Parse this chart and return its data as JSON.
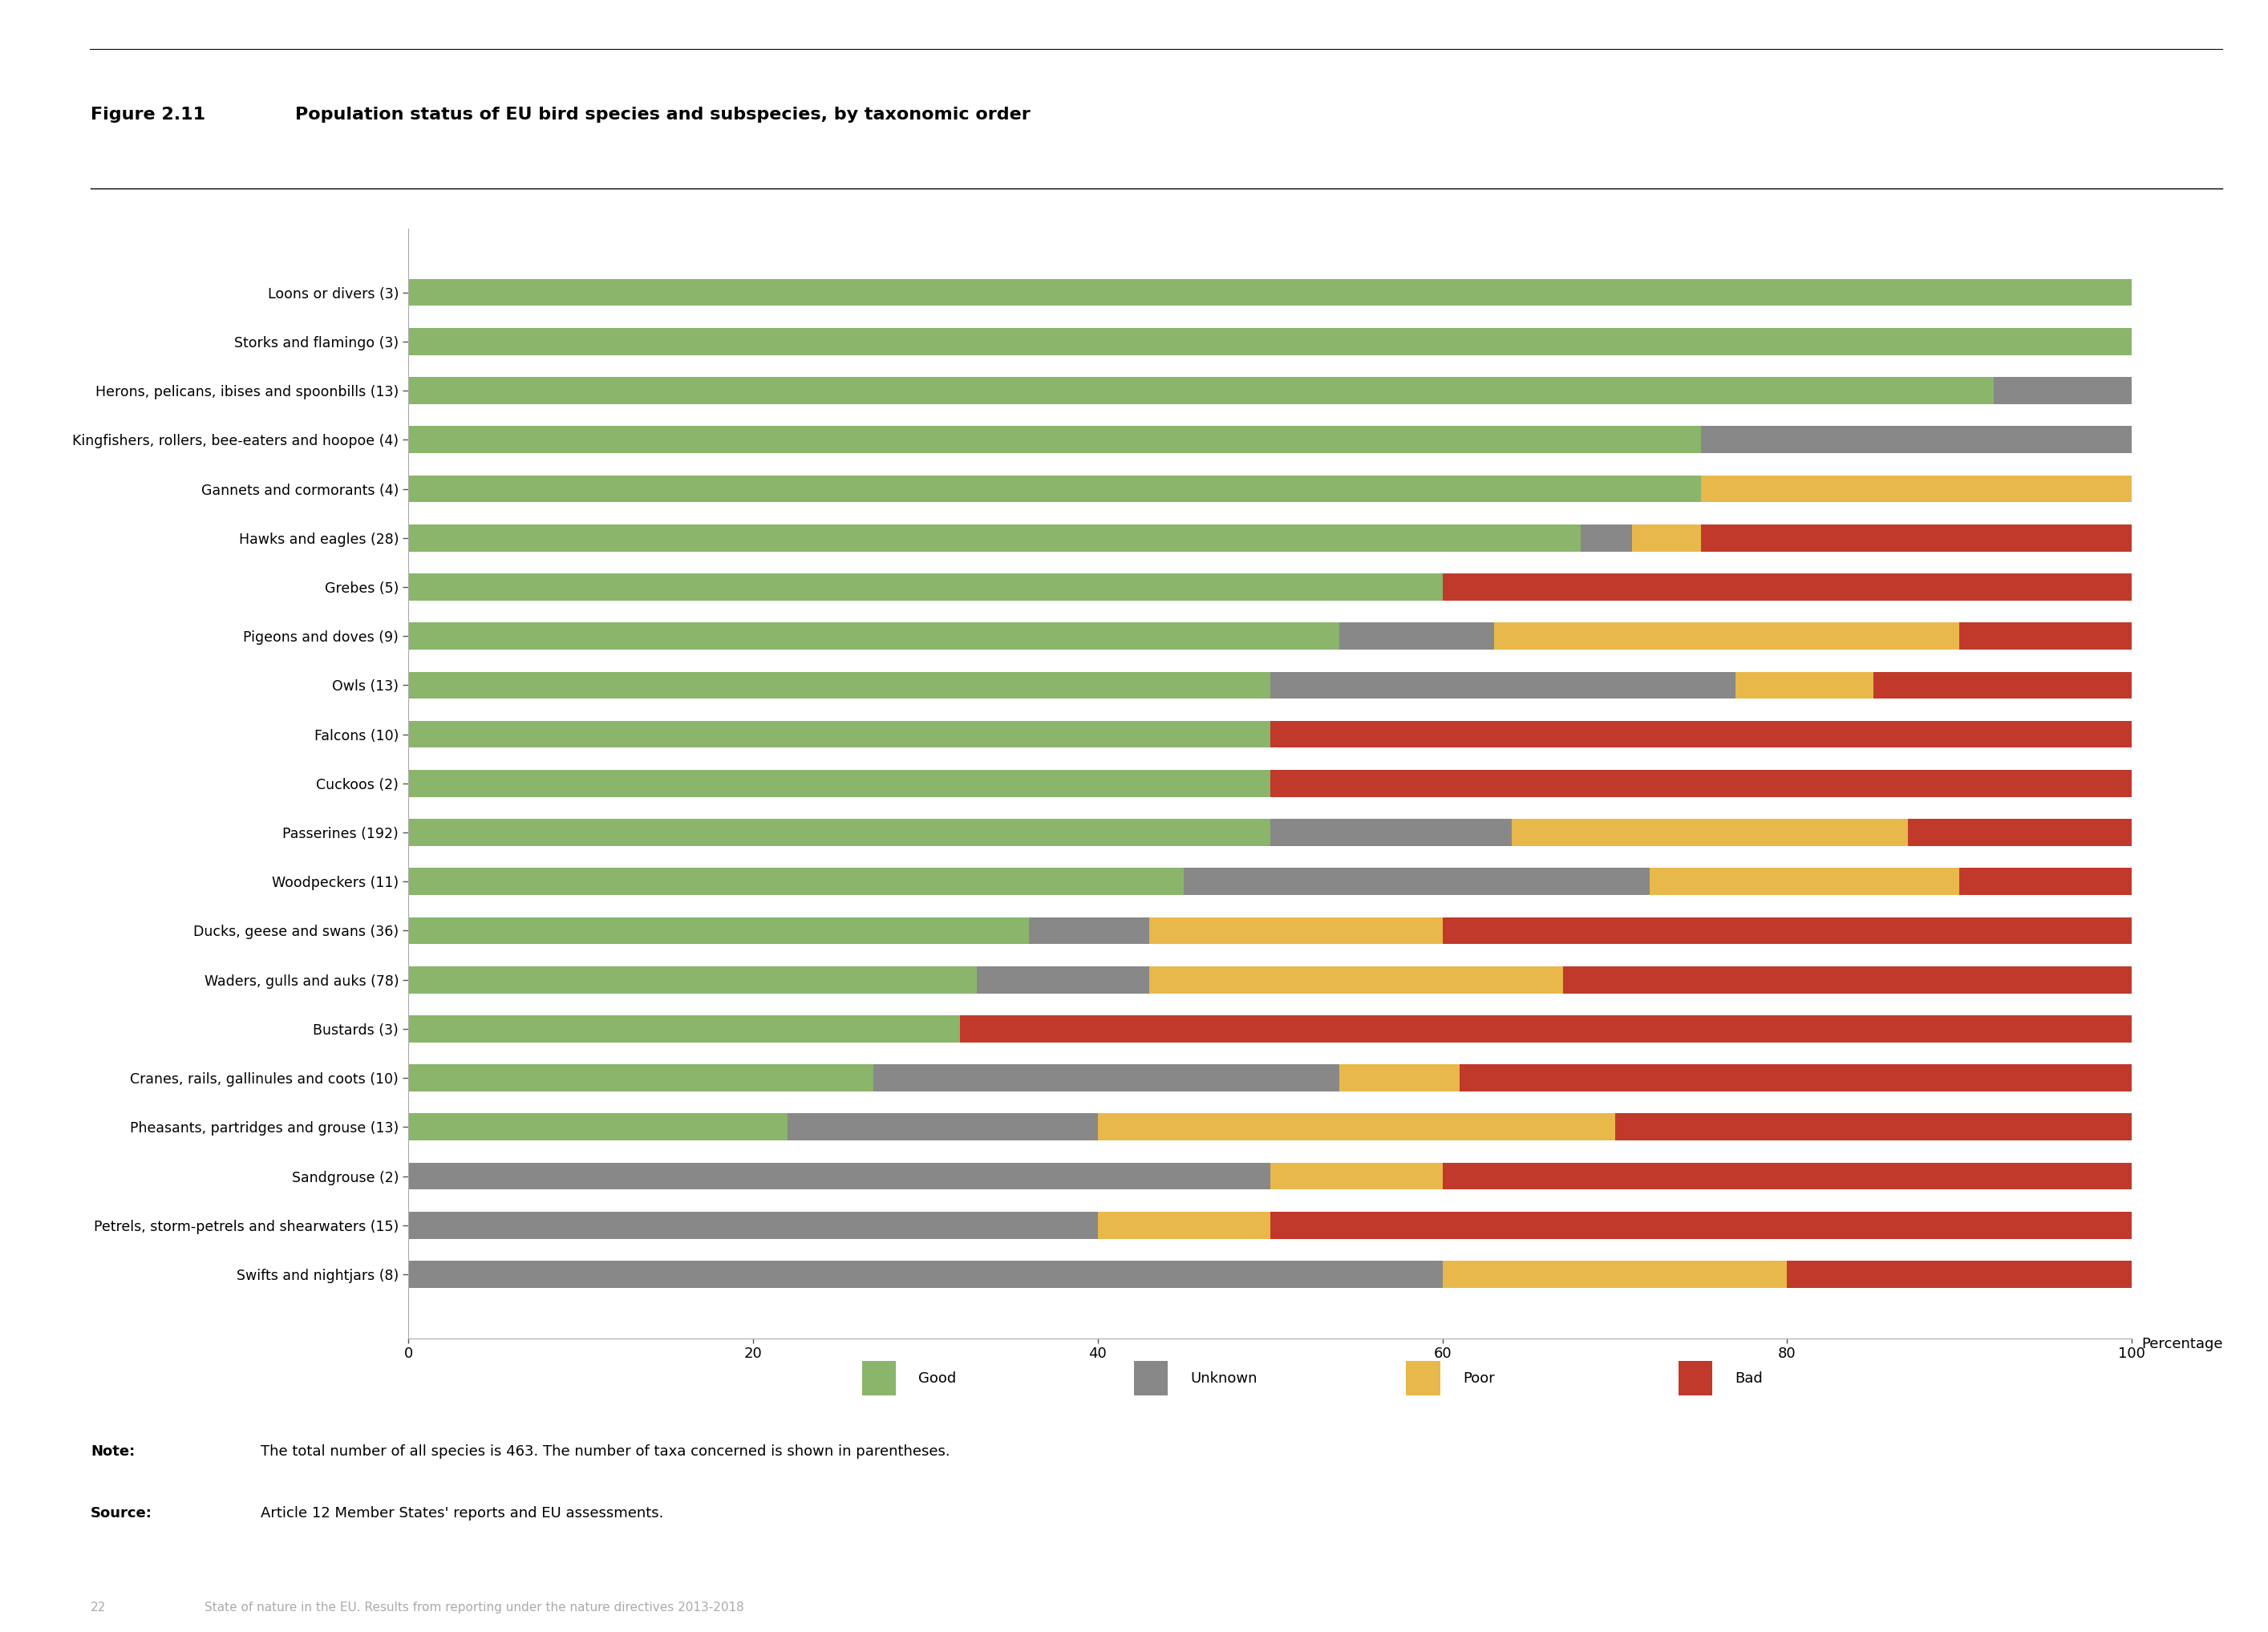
{
  "title_prefix": "Figure 2.11",
  "title": "Population status of EU bird species and subspecies, by taxonomic order",
  "categories": [
    "Loons or divers (3)",
    "Storks and flamingo (3)",
    "Herons, pelicans, ibises and spoonbills (13)",
    "Kingfishers, rollers, bee-eaters and hoopoe (4)",
    "Gannets and cormorants (4)",
    "Hawks and eagles (28)",
    "Grebes (5)",
    "Pigeons and doves (9)",
    "Owls (13)",
    "Falcons (10)",
    "Cuckoos (2)",
    "Passerines (192)",
    "Woodpeckers (11)",
    "Ducks, geese and swans (36)",
    "Waders, gulls and auks (78)",
    "Bustards (3)",
    "Cranes, rails, gallinules and coots (10)",
    "Pheasants, partridges and grouse (13)",
    "Sandgrouse (2)",
    "Petrels, storm-petrels and shearwaters (15)",
    "Swifts and nightjars (8)"
  ],
  "good": [
    100,
    100,
    92,
    75,
    75,
    68,
    60,
    54,
    50,
    50,
    50,
    50,
    45,
    36,
    33,
    32,
    27,
    22,
    0,
    0,
    0
  ],
  "unknown": [
    0,
    0,
    8,
    25,
    0,
    3,
    0,
    9,
    27,
    0,
    0,
    14,
    27,
    7,
    10,
    0,
    27,
    18,
    50,
    40,
    60
  ],
  "poor": [
    0,
    0,
    0,
    0,
    25,
    4,
    0,
    27,
    8,
    0,
    0,
    23,
    18,
    17,
    24,
    0,
    7,
    30,
    10,
    10,
    20
  ],
  "bad": [
    0,
    0,
    0,
    0,
    0,
    25,
    40,
    10,
    15,
    50,
    50,
    13,
    10,
    40,
    33,
    68,
    39,
    30,
    40,
    50,
    20
  ],
  "colors": {
    "good": "#8ab56a",
    "unknown": "#888888",
    "poor": "#e8b84b",
    "bad": "#c0392b"
  },
  "xlabel": "Percentage",
  "note": "The total number of all species is 463. The number of taxa concerned is shown in parentheses.",
  "source": "Article 12 Member States' reports and EU assessments.",
  "footer": "State of nature in the EU. Results from reporting under the nature directives 2013-2018",
  "page_number": "22"
}
